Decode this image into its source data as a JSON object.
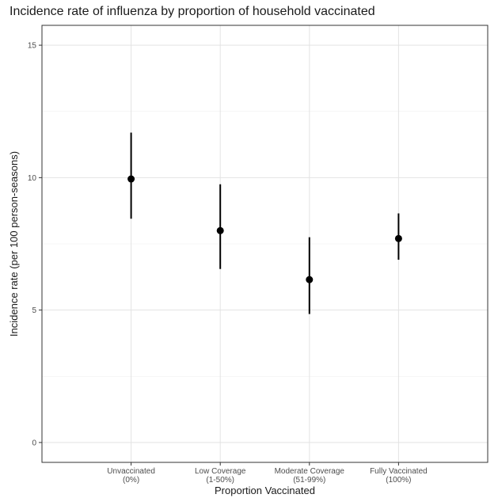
{
  "chart_data": {
    "type": "scatter",
    "title": "Incidence rate of influenza by proportion of household vaccinated",
    "xlabel": "Proportion Vaccinated",
    "ylabel": "Incidence rate (per 100 person-seasons)",
    "categories": [
      [
        "Unvaccinated",
        "(0%)"
      ],
      [
        "Low Coverage",
        "(1-50%)"
      ],
      [
        "Moderate Coverage",
        "(51-99%)"
      ],
      [
        "Fully Vaccinated",
        "(100%)"
      ]
    ],
    "series": [
      {
        "values": [
          9.95,
          8.0,
          6.15,
          7.7
        ],
        "lower": [
          8.45,
          6.55,
          4.85,
          6.9
        ],
        "upper": [
          11.7,
          9.75,
          7.75,
          8.65
        ]
      }
    ],
    "ylim": [
      -0.75,
      15.75
    ],
    "yticks": [
      0,
      5,
      10,
      15
    ],
    "grid": true,
    "legend": "none"
  }
}
